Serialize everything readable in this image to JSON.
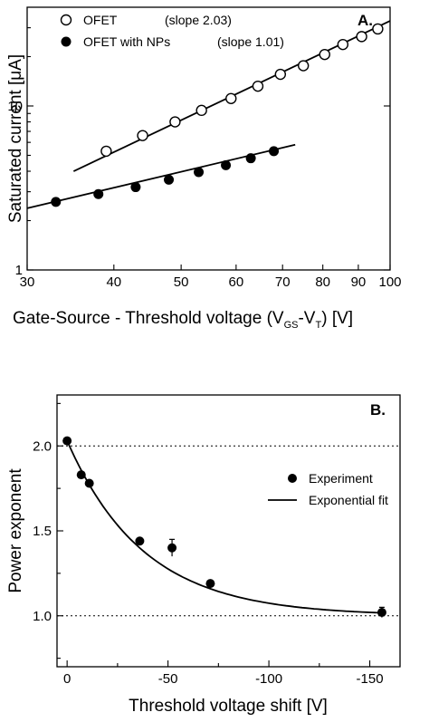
{
  "chart_data": [
    {
      "type": "scatter",
      "panel_label": "A.",
      "xlabel": "Gate-Source - Threshold voltage (V",
      "xlabel_sub1": "GS",
      "xlabel_mid": "-V",
      "xlabel_sub2": "T",
      "xlabel_end": ") [V]",
      "ylabel": "Saturated current [μA]",
      "x_scale": "log",
      "y_scale": "log",
      "xlim": [
        30,
        100
      ],
      "ylim": [
        1,
        40
      ],
      "x_ticks": [
        30,
        40,
        50,
        60,
        70,
        80,
        90,
        100
      ],
      "x_tick_labels": [
        "30",
        "40",
        "50",
        "60",
        "70",
        "80",
        "90",
        "100"
      ],
      "y_ticks": [
        1,
        10
      ],
      "y_tick_labels": [
        "1",
        "10"
      ],
      "legend_position": "top-left",
      "series": [
        {
          "name": "OFET",
          "label": "(slope 2.03)",
          "marker": "open-circle",
          "x": [
            39,
            44,
            49,
            53.5,
            59,
            64.5,
            69.5,
            75,
            80.5,
            85.5,
            91,
            96
          ],
          "y": [
            5.3,
            6.6,
            8.0,
            9.4,
            11.1,
            13.2,
            15.6,
            17.6,
            20.6,
            23.7,
            26.5,
            29.5
          ],
          "fit": {
            "x": [
              35,
              100
            ],
            "y": [
              4.0,
              33.0
            ]
          }
        },
        {
          "name": "OFET with NPs",
          "label": "(slope 1.01)",
          "marker": "filled-circle",
          "x": [
            33,
            38,
            43,
            48,
            53,
            58,
            63,
            68
          ],
          "y": [
            2.6,
            2.9,
            3.2,
            3.55,
            3.95,
            4.35,
            4.8,
            5.3
          ],
          "fit": {
            "x": [
              30,
              73
            ],
            "y": [
              2.38,
              5.8
            ]
          }
        }
      ]
    },
    {
      "type": "scatter",
      "panel_label": "B.",
      "xlabel": "Threshold voltage shift [V]",
      "ylabel": "Power exponent",
      "xlim": [
        5,
        -165
      ],
      "ylim": [
        0.7,
        2.3
      ],
      "x_ticks": [
        0,
        -50,
        -100,
        -150
      ],
      "x_tick_labels": [
        "0",
        "-50",
        "-100",
        "-150"
      ],
      "y_ticks": [
        1.0,
        1.5,
        2.0
      ],
      "y_tick_labels": [
        "1.0",
        "1.5",
        "2.0"
      ],
      "reference_lines": [
        1.0,
        2.0
      ],
      "legend_position": "top-right",
      "series": [
        {
          "name": "Experiment",
          "marker": "filled-circle",
          "x": [
            0,
            -7,
            -11,
            -36,
            -52,
            -71,
            -156
          ],
          "y": [
            2.03,
            1.83,
            1.78,
            1.44,
            1.4,
            1.19,
            1.02
          ],
          "yerr": [
            0,
            0,
            0,
            0,
            0.05,
            0,
            0.03
          ]
        },
        {
          "name": "Exponential fit",
          "marker": "line",
          "model": {
            "y0": 1.0,
            "A": 1.03,
            "t": 38
          }
        }
      ]
    }
  ]
}
